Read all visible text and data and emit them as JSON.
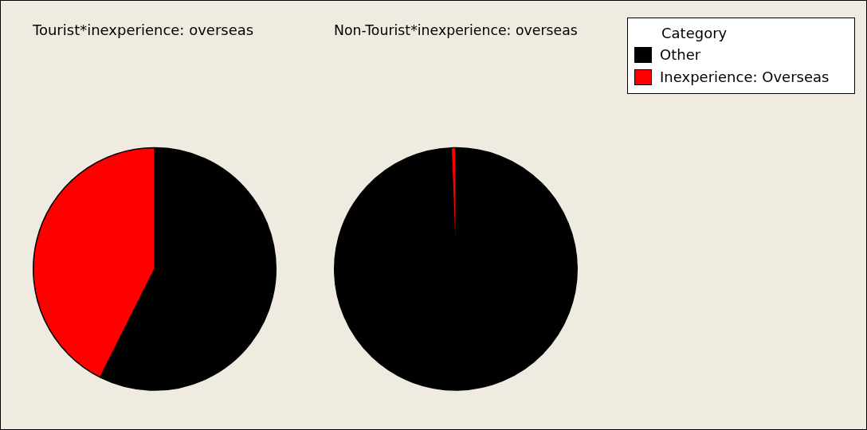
{
  "chart_data": [
    {
      "type": "pie",
      "title": "Tourist*inexperience: overseas",
      "categories": [
        "Other",
        "Inexperience: Overseas"
      ],
      "values": [
        57.4,
        42.6
      ],
      "colors": [
        "#000000",
        "#ff0000"
      ],
      "legend": "top right",
      "legend_title": "Category"
    },
    {
      "type": "pie",
      "title": "Non-Tourist*inexperience: overseas",
      "categories": [
        null,
        null
      ],
      "values": [
        99.4,
        0.6
      ],
      "colors": [
        "#000000",
        "#ff0000"
      ]
    }
  ]
}
